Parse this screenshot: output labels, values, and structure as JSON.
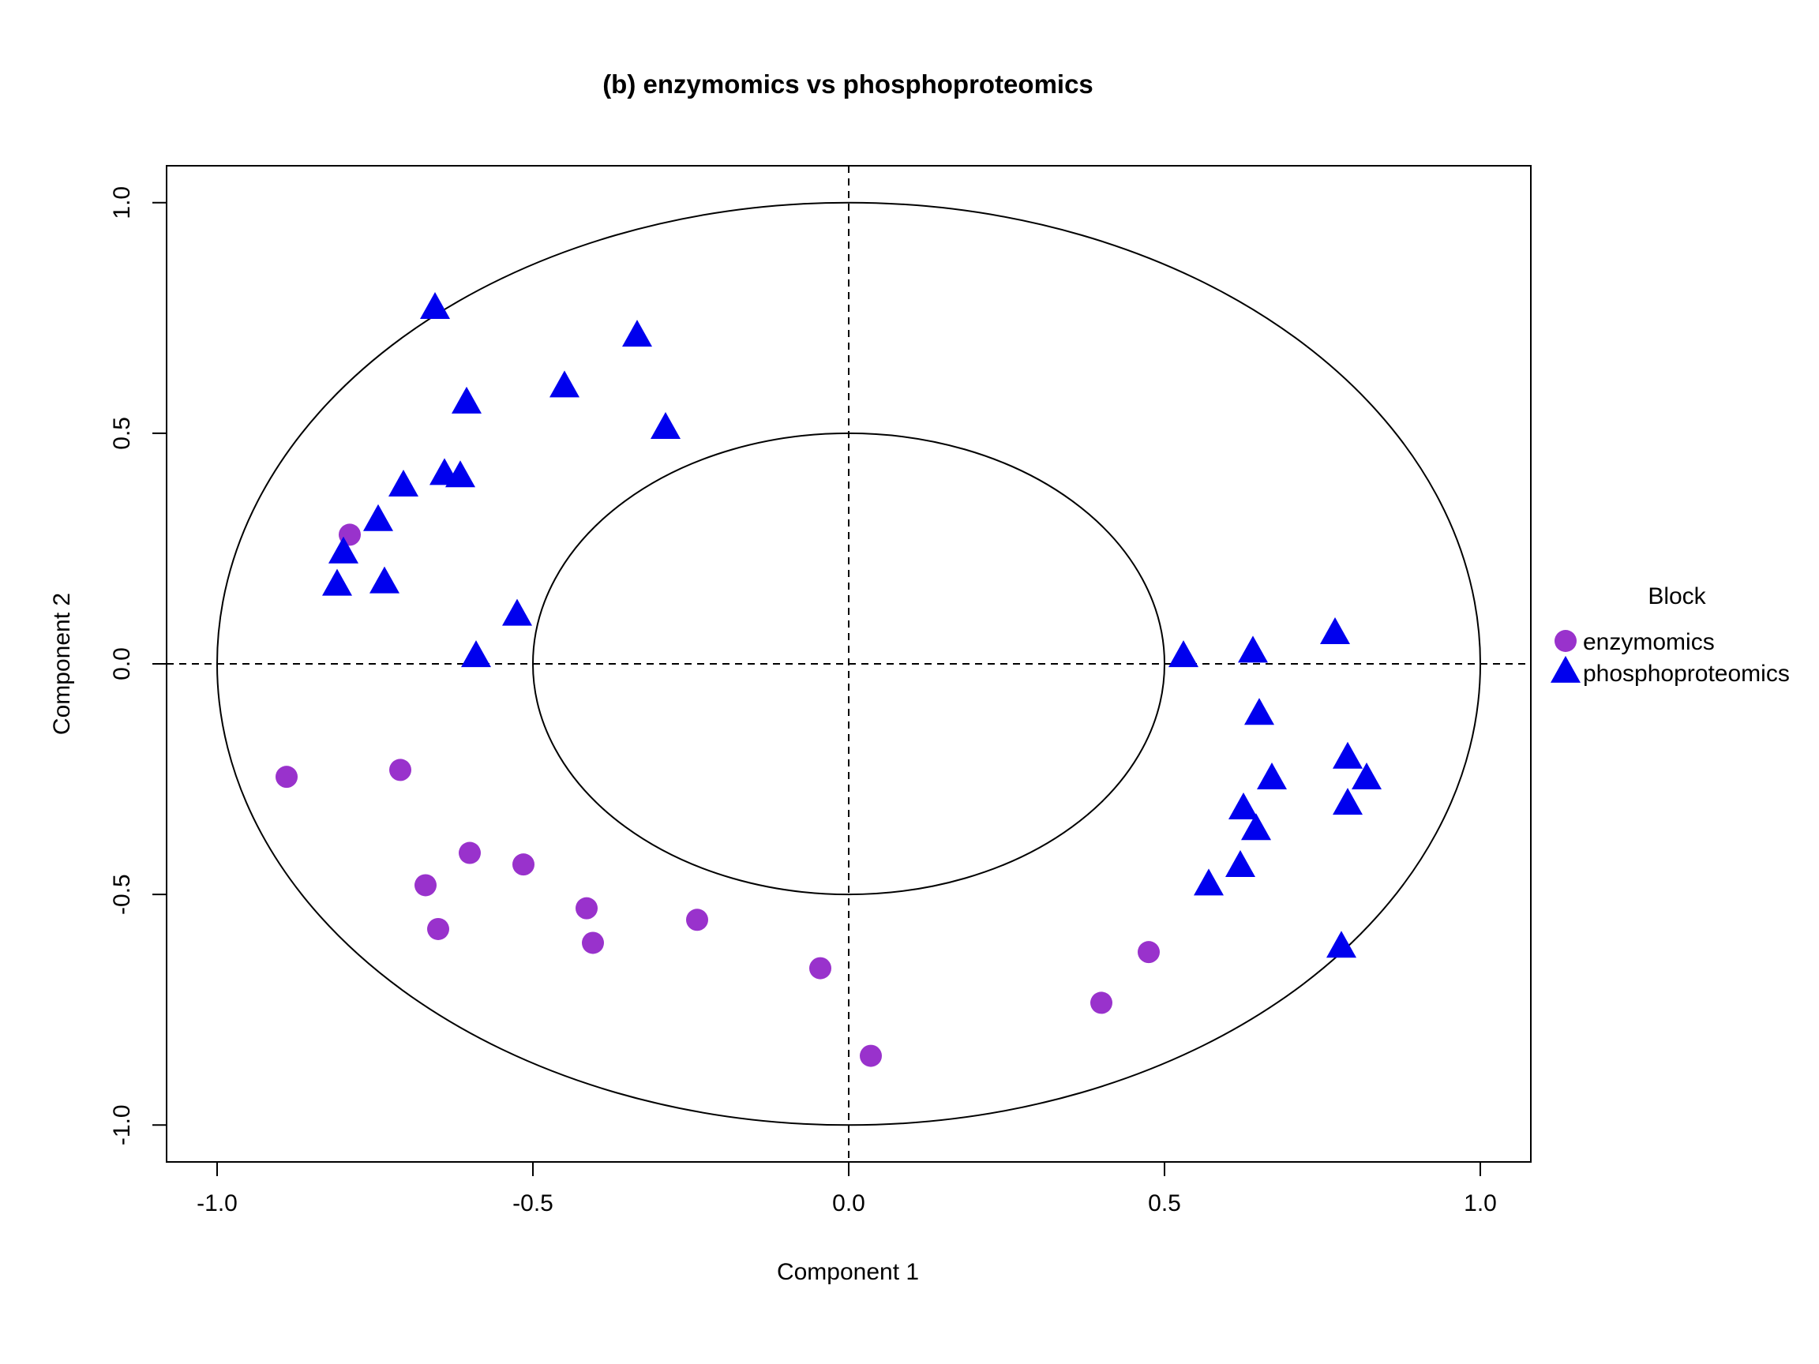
{
  "chart_data": {
    "type": "scatter",
    "title": "(b) enzymomics vs phosphoproteomics",
    "xlabel": "Component  1",
    "ylabel": "Component  2",
    "xlim": [
      -1.08,
      1.08
    ],
    "ylim": [
      -1.08,
      1.08
    ],
    "x_ticks": [
      "-1.0",
      "-0.5",
      "0.0",
      "0.5",
      "1.0"
    ],
    "y_ticks": [
      "-1.0",
      "-0.5",
      "0.0",
      "0.5",
      "1.0"
    ],
    "circles": [
      1.0,
      0.5
    ],
    "reference_lines": "dashed lines at x = 0 and y = 0",
    "grid": false,
    "legend": {
      "title": "Block",
      "placement": "right",
      "entries": [
        "enzymomics",
        "phosphoproteomics"
      ]
    },
    "series": [
      {
        "name": "enzymomics",
        "marker": "circle",
        "color": "#9932CC",
        "points": [
          [
            -0.79,
            0.28
          ],
          [
            -0.89,
            -0.245
          ],
          [
            -0.71,
            -0.23
          ],
          [
            -0.67,
            -0.48
          ],
          [
            -0.65,
            -0.575
          ],
          [
            -0.6,
            -0.41
          ],
          [
            -0.515,
            -0.435
          ],
          [
            -0.415,
            -0.53
          ],
          [
            -0.405,
            -0.605
          ],
          [
            -0.24,
            -0.555
          ],
          [
            -0.045,
            -0.66
          ],
          [
            0.035,
            -0.85
          ],
          [
            0.4,
            -0.735
          ],
          [
            0.475,
            -0.625
          ]
        ]
      },
      {
        "name": "phosphoproteomics",
        "marker": "triangle",
        "color": "#0000EE",
        "points": [
          [
            -0.655,
            0.77
          ],
          [
            -0.335,
            0.71
          ],
          [
            -0.45,
            0.6
          ],
          [
            -0.605,
            0.565
          ],
          [
            -0.29,
            0.51
          ],
          [
            -0.64,
            0.41
          ],
          [
            -0.615,
            0.405
          ],
          [
            -0.705,
            0.385
          ],
          [
            -0.745,
            0.31
          ],
          [
            -0.8,
            0.24
          ],
          [
            -0.81,
            0.17
          ],
          [
            -0.735,
            0.175
          ],
          [
            -0.525,
            0.105
          ],
          [
            -0.59,
            0.015
          ],
          [
            0.53,
            0.015
          ],
          [
            0.64,
            0.025
          ],
          [
            0.77,
            0.065
          ],
          [
            0.65,
            -0.11
          ],
          [
            0.79,
            -0.205
          ],
          [
            0.82,
            -0.25
          ],
          [
            0.67,
            -0.25
          ],
          [
            0.625,
            -0.315
          ],
          [
            0.79,
            -0.305
          ],
          [
            0.645,
            -0.36
          ],
          [
            0.62,
            -0.44
          ],
          [
            0.57,
            -0.48
          ],
          [
            0.78,
            -0.615
          ]
        ]
      }
    ]
  }
}
